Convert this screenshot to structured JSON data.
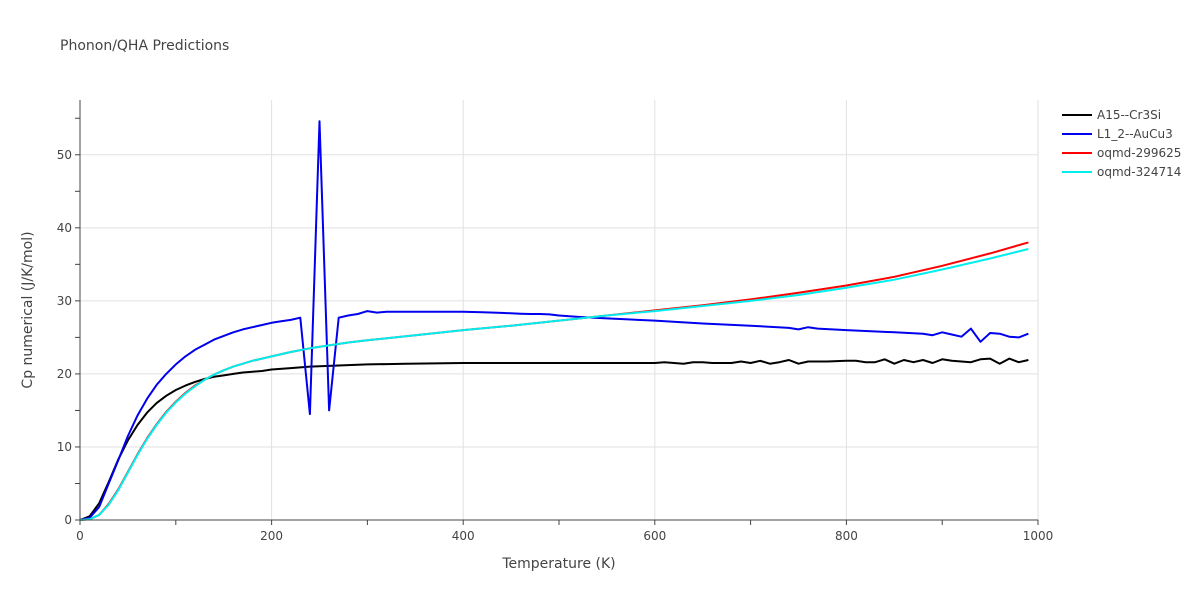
{
  "chart_data": {
    "type": "line",
    "title": "Phonon/QHA Predictions",
    "xlabel": "Temperature (K)",
    "ylabel": "Cp numerical (J/K/mol)",
    "xlim": [
      0,
      1000
    ],
    "ylim": [
      0,
      57.5
    ],
    "xticks": [
      0,
      200,
      400,
      600,
      800,
      1000
    ],
    "yticks": [
      0,
      10,
      20,
      30,
      40,
      50
    ],
    "grid": true,
    "legend_position": "top-right",
    "series": [
      {
        "name": "A15--Cr3Si",
        "color": "#000000",
        "x": [
          0,
          10,
          20,
          30,
          40,
          50,
          60,
          70,
          80,
          90,
          100,
          110,
          120,
          130,
          140,
          150,
          160,
          170,
          180,
          190,
          200,
          220,
          240,
          260,
          280,
          300,
          320,
          340,
          360,
          380,
          400,
          450,
          500,
          550,
          600,
          610,
          620,
          630,
          640,
          650,
          660,
          670,
          680,
          690,
          700,
          710,
          720,
          730,
          740,
          750,
          760,
          770,
          780,
          790,
          800,
          810,
          820,
          830,
          840,
          850,
          860,
          870,
          880,
          890,
          900,
          910,
          920,
          930,
          940,
          950,
          960,
          970,
          980,
          990
        ],
        "y": [
          0,
          0.5,
          2.3,
          5.2,
          8.3,
          10.9,
          13,
          14.7,
          16,
          17,
          17.8,
          18.4,
          18.9,
          19.3,
          19.6,
          19.8,
          20,
          20.2,
          20.3,
          20.4,
          20.6,
          20.8,
          21.0,
          21.1,
          21.2,
          21.3,
          21.35,
          21.4,
          21.42,
          21.45,
          21.5,
          21.5,
          21.5,
          21.5,
          21.5,
          21.6,
          21.5,
          21.4,
          21.6,
          21.6,
          21.5,
          21.5,
          21.5,
          21.7,
          21.5,
          21.8,
          21.4,
          21.6,
          21.9,
          21.4,
          21.7,
          21.7,
          21.7,
          21.75,
          21.8,
          21.8,
          21.6,
          21.6,
          22.0,
          21.4,
          21.9,
          21.6,
          21.9,
          21.5,
          22.0,
          21.8,
          21.7,
          21.6,
          22.0,
          22.1,
          21.4,
          22.1,
          21.6,
          21.9
        ]
      },
      {
        "name": "L1_2--AuCu3",
        "color": "#0000ee",
        "x": [
          0,
          10,
          20,
          30,
          40,
          50,
          60,
          70,
          80,
          90,
          100,
          110,
          120,
          130,
          140,
          150,
          160,
          170,
          180,
          190,
          200,
          210,
          220,
          230,
          240,
          250,
          260,
          270,
          280,
          290,
          300,
          310,
          320,
          330,
          340,
          360,
          380,
          390,
          400,
          420,
          440,
          460,
          470,
          480,
          490,
          500,
          520,
          550,
          600,
          650,
          700,
          740,
          750,
          760,
          770,
          800,
          850,
          880,
          890,
          900,
          910,
          920,
          930,
          940,
          950,
          960,
          970,
          980,
          990
        ],
        "y": [
          0,
          0.3,
          1.8,
          5.0,
          8.2,
          11.5,
          14.3,
          16.6,
          18.5,
          20.0,
          21.3,
          22.4,
          23.3,
          24.0,
          24.7,
          25.2,
          25.7,
          26.1,
          26.4,
          26.7,
          27.0,
          27.2,
          27.4,
          27.7,
          14.5,
          54.6,
          15.0,
          27.7,
          28.0,
          28.2,
          28.6,
          28.4,
          28.5,
          28.5,
          28.5,
          28.5,
          28.5,
          28.5,
          28.5,
          28.45,
          28.35,
          28.25,
          28.2,
          28.2,
          28.15,
          28.0,
          27.8,
          27.6,
          27.3,
          26.9,
          26.6,
          26.3,
          26.1,
          26.4,
          26.2,
          26.0,
          25.7,
          25.5,
          25.3,
          25.7,
          25.4,
          25.1,
          26.2,
          24.4,
          25.6,
          25.5,
          25.1,
          25.0,
          25.5
        ]
      },
      {
        "name": "oqmd-299625",
        "color": "#ff0000",
        "x": [
          0,
          10,
          20,
          30,
          40,
          50,
          60,
          70,
          80,
          90,
          100,
          110,
          120,
          130,
          140,
          150,
          160,
          170,
          180,
          190,
          200,
          220,
          240,
          260,
          280,
          300,
          350,
          400,
          450,
          500,
          550,
          600,
          650,
          700,
          750,
          800,
          850,
          900,
          950,
          990
        ],
        "y": [
          0,
          0.1,
          0.7,
          2.2,
          4.2,
          6.6,
          9.0,
          11.2,
          13.1,
          14.8,
          16.2,
          17.4,
          18.4,
          19.2,
          19.9,
          20.5,
          21.0,
          21.4,
          21.8,
          22.1,
          22.4,
          23.0,
          23.5,
          23.9,
          24.3,
          24.6,
          25.3,
          26.0,
          26.6,
          27.3,
          28.0,
          28.7,
          29.4,
          30.2,
          31.1,
          32.1,
          33.3,
          34.8,
          36.5,
          38.0
        ]
      },
      {
        "name": "oqmd-324714",
        "color": "#00eeee",
        "x": [
          0,
          10,
          20,
          30,
          40,
          50,
          60,
          70,
          80,
          90,
          100,
          110,
          120,
          130,
          140,
          150,
          160,
          170,
          180,
          190,
          200,
          220,
          240,
          260,
          280,
          300,
          350,
          400,
          450,
          500,
          550,
          600,
          650,
          700,
          750,
          800,
          850,
          900,
          950,
          990
        ],
        "y": [
          0,
          0.1,
          0.7,
          2.1,
          4.1,
          6.5,
          8.9,
          11.1,
          13.0,
          14.7,
          16.1,
          17.3,
          18.3,
          19.2,
          19.9,
          20.5,
          21.0,
          21.4,
          21.8,
          22.1,
          22.4,
          23.0,
          23.5,
          23.9,
          24.3,
          24.6,
          25.3,
          26.0,
          26.6,
          27.3,
          28.0,
          28.6,
          29.3,
          30.0,
          30.8,
          31.8,
          32.9,
          34.3,
          35.8,
          37.1
        ]
      }
    ]
  }
}
